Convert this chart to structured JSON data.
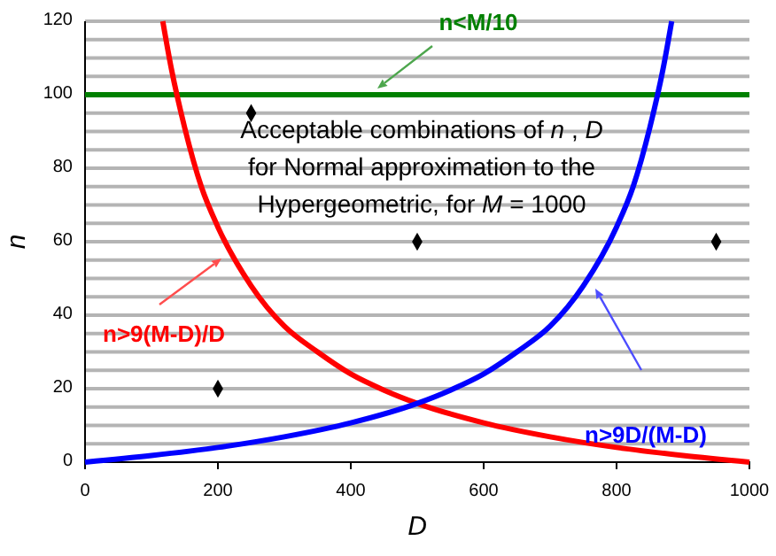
{
  "chart_data": {
    "type": "line",
    "xlabel": "D",
    "ylabel": "n",
    "annotations": [
      "Acceptable combinations of n , D for Normal approximation to the Hypergeometric, for M = 1000"
    ],
    "xlim": [
      0,
      1000
    ],
    "xticks": [
      0,
      200,
      400,
      600,
      800,
      1000
    ],
    "ylim": [
      0,
      120
    ],
    "yticks": [
      0,
      {
        "value": 5,
        "label": null
      },
      {
        "value": 10,
        "label": null
      },
      {
        "value": 15,
        "label": null
      },
      20,
      {
        "value": 25,
        "label": null
      },
      {
        "value": 30,
        "label": null
      },
      {
        "value": 35,
        "label": null
      },
      40,
      {
        "value": 45,
        "label": null
      },
      {
        "value": 50,
        "label": null
      },
      {
        "value": 55,
        "label": null
      },
      60,
      {
        "value": 65,
        "label": null
      },
      {
        "value": 70,
        "label": null
      },
      {
        "value": 75,
        "label": null
      },
      80,
      {
        "value": 85,
        "label": null
      },
      {
        "value": 90,
        "label": null
      },
      {
        "value": 95,
        "label": null
      },
      100,
      {
        "value": 105,
        "label": null
      },
      {
        "value": 110,
        "label": null
      },
      {
        "value": 115,
        "label": null
      },
      120
    ],
    "grid": "y",
    "line_style": "solid",
    "marker": "none",
    "series": [
      {
        "name": "n<M/10",
        "color": "#008000",
        "x": [
          0,
          1000
        ],
        "values": [
          100,
          100
        ]
      },
      {
        "name": "n>9(M-D)/D",
        "color": "#ff0000",
        "x": [
          117,
          130,
          150,
          175,
          200,
          250,
          300,
          350,
          400,
          450,
          500,
          600,
          700,
          800,
          900,
          1000
        ],
        "values": [
          120,
          107,
          91,
          75,
          64,
          48,
          37,
          30,
          24,
          19.6,
          16,
          10.7,
          6.9,
          4,
          1.8,
          0
        ]
      },
      {
        "name": "n>9D/(M-D)",
        "color": "#0000ff",
        "x": [
          0,
          100,
          200,
          300,
          400,
          500,
          550,
          600,
          650,
          700,
          750,
          800,
          825,
          850,
          870,
          883
        ],
        "values": [
          0,
          1.8,
          4,
          6.9,
          10.7,
          16,
          19.6,
          24,
          30,
          37,
          48,
          64,
          75,
          91,
          107,
          120
        ]
      },
      {
        "type": "scatter",
        "marker": "diamond",
        "color": "#000000",
        "x": [
          250,
          500,
          950,
          200
        ],
        "values": [
          95,
          60,
          60,
          20
        ]
      }
    ]
  }
}
